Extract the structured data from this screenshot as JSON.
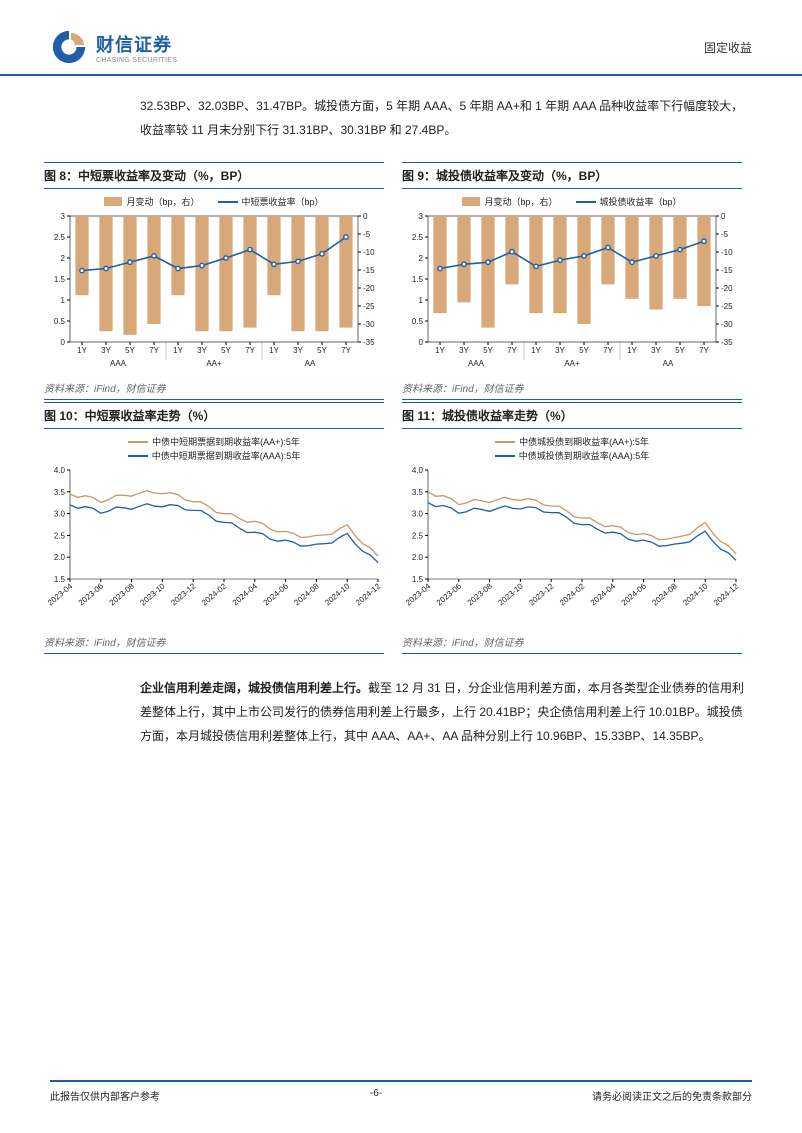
{
  "header": {
    "brand_cn": "财信证券",
    "brand_en": "CHASING SECURITIES",
    "category": "固定收益",
    "logo_color_dark": "#1e5fa8",
    "logo_color_light": "#d8a878"
  },
  "intro_text": "32.53BP、32.03BP、31.47BP。城投债方面，5 年期 AAA、5 年期 AA+和 1 年期 AAA 品种收益率下行幅度较大，收益率较 11 月末分别下行 31.31BP、30.31BP 和 27.4BP。",
  "fig8": {
    "title": "图 8：中短票收益率及变动（%，BP）",
    "source": "资料来源：iFind，财信证券",
    "legend_bar": "月变动（bp，右）",
    "legend_line": "中短票收益率（bp）",
    "groups": [
      "AAA",
      "AA+",
      "AA"
    ],
    "cats": [
      "1Y",
      "3Y",
      "5Y",
      "7Y",
      "1Y",
      "3Y",
      "5Y",
      "7Y",
      "1Y",
      "3Y",
      "5Y",
      "7Y"
    ],
    "yl_ticks": [
      0,
      0.5,
      1,
      1.5,
      2,
      2.5,
      3
    ],
    "yr_ticks": [
      -35,
      -30,
      -25,
      -20,
      -15,
      -10,
      -5,
      0
    ],
    "bars": [
      -22,
      -32,
      -33,
      -30,
      -22,
      -32,
      -32,
      -31,
      -22,
      -32,
      -32,
      -31
    ],
    "line": [
      1.7,
      1.75,
      1.9,
      2.05,
      1.75,
      1.82,
      2.0,
      2.2,
      1.85,
      1.92,
      2.1,
      2.5
    ],
    "bar_color": "#d8a878",
    "line_color": "#1e5fa8",
    "bg": "#ffffff",
    "grid": "#aaaaaa"
  },
  "fig9": {
    "title": "图 9：城投债收益率及变动（%，BP）",
    "source": "资料来源：iFind，财信证券",
    "legend_bar": "月变动（bp，右）",
    "legend_line": "城投债收益率（bp）",
    "groups": [
      "AAA",
      "AA+",
      "AA"
    ],
    "cats": [
      "1Y",
      "3Y",
      "5Y",
      "7Y",
      "1Y",
      "3Y",
      "5Y",
      "7Y",
      "1Y",
      "3Y",
      "5Y",
      "7Y"
    ],
    "yl_ticks": [
      0,
      0.5,
      1,
      1.5,
      2,
      2.5,
      3
    ],
    "yr_ticks": [
      -35,
      -30,
      -25,
      -20,
      -15,
      -10,
      -5,
      0
    ],
    "bars": [
      -27,
      -24,
      -31,
      -19,
      -27,
      -27,
      -30,
      -19,
      -23,
      -26,
      -23,
      -25
    ],
    "line": [
      1.75,
      1.85,
      1.9,
      2.15,
      1.8,
      1.95,
      2.05,
      2.25,
      1.9,
      2.05,
      2.2,
      2.4
    ],
    "bar_color": "#d8a878",
    "line_color": "#1e5fa8",
    "bg": "#ffffff",
    "grid": "#aaaaaa"
  },
  "fig10": {
    "title": "图 10：中短票收益率走势（%）",
    "source": "资料来源：iFind，财信证券",
    "legend_a": "中债中短期票据到期收益率(AA+):5年",
    "legend_b": "中债中短期票据到期收益率(AAA):5年",
    "xcats": [
      "2023-04",
      "2023-06",
      "2023-08",
      "2023-10",
      "2023-12",
      "2024-02",
      "2024-04",
      "2024-06",
      "2024-08",
      "2024-10",
      "2024-12"
    ],
    "yticks": [
      1.5,
      2.0,
      2.5,
      3.0,
      3.5,
      4.0
    ],
    "series_a": [
      3.45,
      3.3,
      3.45,
      3.5,
      3.3,
      3.0,
      2.8,
      2.55,
      2.45,
      2.7,
      2.0
    ],
    "series_b": [
      3.2,
      3.05,
      3.15,
      3.2,
      3.1,
      2.8,
      2.55,
      2.35,
      2.25,
      2.5,
      1.85
    ],
    "color_a": "#c89868",
    "color_b": "#1e5fa8",
    "bg": "#ffffff"
  },
  "fig11": {
    "title": "图 11：城投债收益率走势（%）",
    "source": "资料来源：iFind，财信证券",
    "legend_a": "中债城投债到期收益率(AA+):5年",
    "legend_b": "中债城投债到期收益率(AAA):5年",
    "xcats": [
      "2023-04",
      "2023-06",
      "2023-08",
      "2023-10",
      "2023-12",
      "2024-02",
      "2024-04",
      "2024-06",
      "2024-08",
      "2024-10",
      "2024-12"
    ],
    "yticks": [
      1.5,
      2.0,
      2.5,
      3.0,
      3.5,
      4.0
    ],
    "series_a": [
      3.5,
      3.25,
      3.3,
      3.35,
      3.2,
      2.9,
      2.7,
      2.5,
      2.4,
      2.75,
      2.05
    ],
    "series_b": [
      3.25,
      3.05,
      3.1,
      3.15,
      3.05,
      2.75,
      2.55,
      2.35,
      2.25,
      2.55,
      1.9
    ],
    "color_a": "#c89868",
    "color_b": "#1e5fa8",
    "bg": "#ffffff"
  },
  "para2": "企业信用利差走阔，城投债信用利差上行。截至 12 月 31 日，分企业信用利差方面，本月各类型企业债券的信用利差整体上行，其中上市公司发行的债券信用利差上行最多，上行 20.41BP；央企债信用利差上行 10.01BP。城投债方面，本月城投债信用利差整体上行，其中 AAA、AA+、AA 品种分别上行 10.96BP、15.33BP、14.35BP。",
  "para2_bold": "企业信用利差走阔，城投债信用利差上行。",
  "footer": {
    "left": "此报告仅供内部客户参考",
    "page": "-6-",
    "right": "请务必阅读正文之后的免责条款部分"
  }
}
